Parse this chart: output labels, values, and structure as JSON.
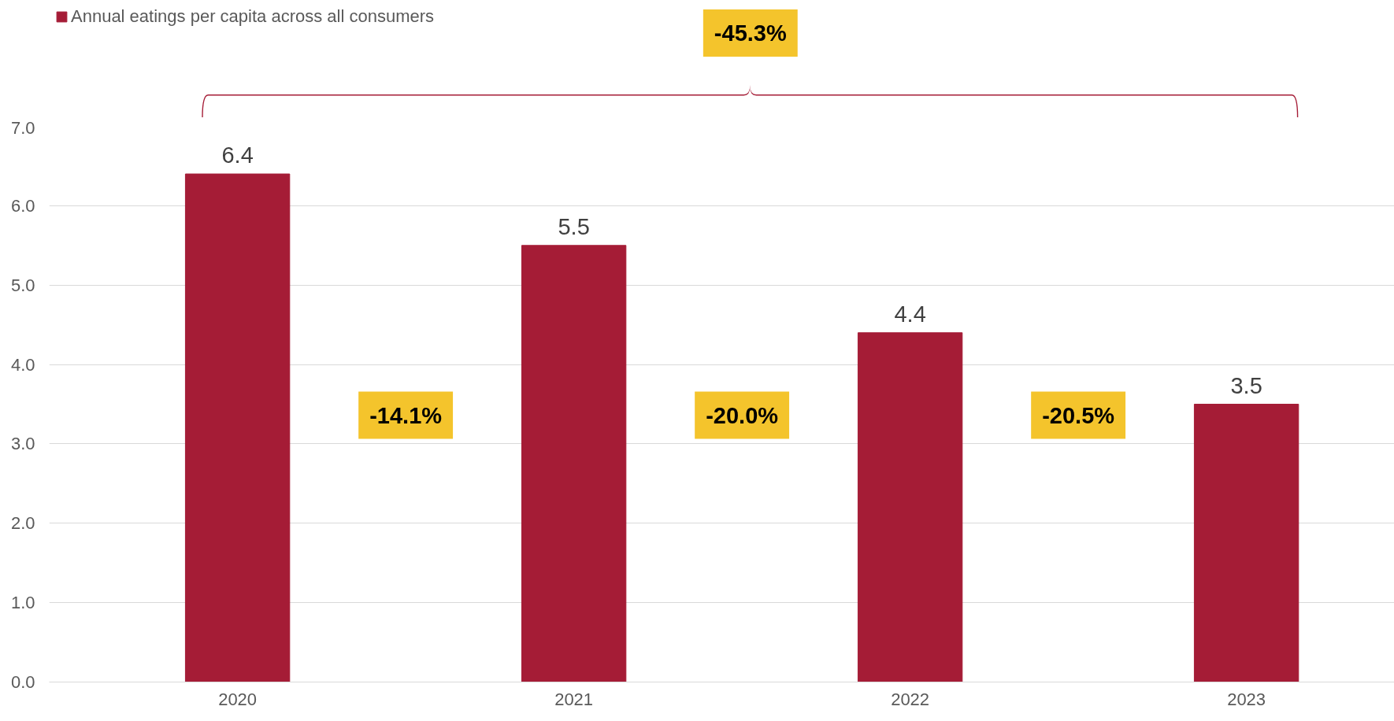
{
  "chart_data": {
    "type": "bar",
    "categories": [
      "2020",
      "2021",
      "2022",
      "2023"
    ],
    "series": [
      {
        "name": "Annual eatings per capita across all consumers",
        "color": "#a51c36",
        "values": [
          6.4,
          5.5,
          4.4,
          3.5
        ]
      }
    ],
    "ylim": [
      0,
      7
    ],
    "yticks": [
      {
        "value": 0,
        "label": "0.0"
      },
      {
        "value": 1,
        "label": "1.0"
      },
      {
        "value": 2,
        "label": "2.0"
      },
      {
        "value": 3,
        "label": "3.0"
      },
      {
        "value": 4,
        "label": "4.0"
      },
      {
        "value": 5,
        "label": "5.0"
      },
      {
        "value": 6,
        "label": "6.0"
      },
      {
        "value": 7,
        "label": "7.0"
      }
    ],
    "grid": "y",
    "legend": "top left",
    "data_labels": true,
    "annotations": [
      "-45.3%",
      "-14.1%",
      "-20.0%",
      "-20.5%"
    ]
  }
}
